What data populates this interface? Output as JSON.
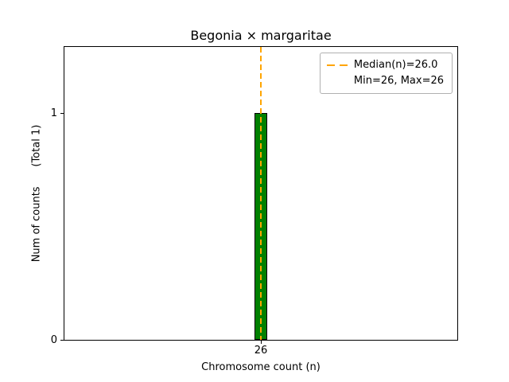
{
  "chart_data": {
    "type": "bar",
    "title": "Begonia × margaritae",
    "xlabel": "Chromosome count (n)",
    "ylabel": "Num of counts      (Total 1)",
    "categories": [
      "26"
    ],
    "values": [
      1
    ],
    "ylim": [
      0,
      1.3
    ],
    "yticks": [
      "0",
      "1"
    ],
    "xticks": [
      "26"
    ],
    "grid": false,
    "bar_color": "#008000",
    "bar_edge_color": "#000000",
    "median_line": {
      "value": 26.0,
      "color": "#FFA500",
      "style": "dashed",
      "orientation": "vertical"
    },
    "legend": {
      "position": "upper right",
      "entries": [
        "Median(n)=26.0",
        "Min=26, Max=26"
      ]
    },
    "total_annotation": "(Total 1)"
  }
}
